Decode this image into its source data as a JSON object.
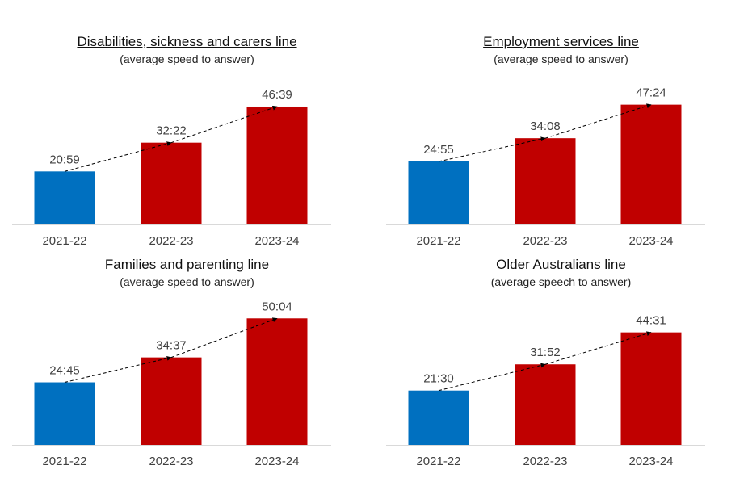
{
  "chart_data": [
    {
      "type": "bar",
      "title": "Disabilities, sickness and carers line",
      "subtitle": "(average speed to answer)",
      "categories": [
        "2021-22",
        "2022-23",
        "2023-24"
      ],
      "values": [
        20.98,
        32.37,
        46.65
      ],
      "labels": [
        "20:59",
        "32:22",
        "46:39"
      ],
      "colors": [
        "#0070C0",
        "#C00000",
        "#C00000"
      ],
      "trend_line": "dashed arrows",
      "ylim": [
        0,
        60
      ],
      "grid": false
    },
    {
      "type": "bar",
      "title": "Employment services line",
      "subtitle": "(average speed to answer)",
      "categories": [
        "2021-22",
        "2022-23",
        "2023-24"
      ],
      "values": [
        24.92,
        34.13,
        47.4
      ],
      "labels": [
        "24:55",
        "34:08",
        "47:24"
      ],
      "colors": [
        "#0070C0",
        "#C00000",
        "#C00000"
      ],
      "trend_line": "dashed arrows",
      "ylim": [
        0,
        60
      ],
      "grid": false
    },
    {
      "type": "bar",
      "title": "Families and parenting line",
      "subtitle": "(average speed to answer)",
      "categories": [
        "2021-22",
        "2022-23",
        "2023-24"
      ],
      "values": [
        24.75,
        34.62,
        50.07
      ],
      "labels": [
        "24:45",
        "34:37",
        "50:04"
      ],
      "colors": [
        "#0070C0",
        "#C00000",
        "#C00000"
      ],
      "trend_line": "dashed arrows",
      "ylim": [
        0,
        60
      ],
      "grid": false
    },
    {
      "type": "bar",
      "title": "Older Australians line",
      "subtitle": "(average speech to answer)",
      "categories": [
        "2021-22",
        "2022-23",
        "2023-24"
      ],
      "values": [
        21.5,
        31.87,
        44.52
      ],
      "labels": [
        "21:30",
        "31:52",
        "44:31"
      ],
      "colors": [
        "#0070C0",
        "#C00000",
        "#C00000"
      ],
      "trend_line": "dashed arrows",
      "ylim": [
        0,
        60
      ],
      "grid": false
    }
  ]
}
